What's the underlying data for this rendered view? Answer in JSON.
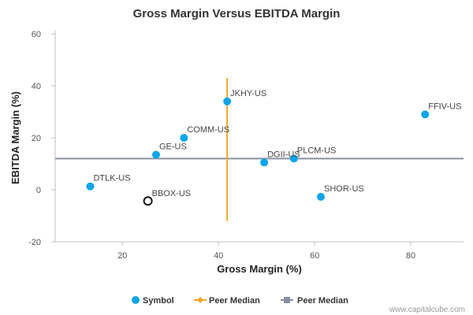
{
  "chart_data": {
    "type": "scatter",
    "title": "Gross Margin Versus EBITDA Margin",
    "xlabel": "Gross Margin (%)",
    "ylabel": "EBITDA Margin (%)",
    "xlim": [
      6,
      91
    ],
    "ylim": [
      -20,
      60
    ],
    "xticks": [
      20,
      40,
      60,
      80
    ],
    "yticks": [
      60,
      40,
      20,
      0,
      -20
    ],
    "series": [
      {
        "name": "Symbol",
        "color": "#0ea5e9",
        "points": [
          {
            "label": "JKHY-US",
            "x": 41.8,
            "y": 34.0
          },
          {
            "label": "FFIV-US",
            "x": 83.0,
            "y": 29.0
          },
          {
            "label": "COMM-US",
            "x": 32.8,
            "y": 20.0
          },
          {
            "label": "GE-US",
            "x": 27.0,
            "y": 13.5
          },
          {
            "label": "PLCM-US",
            "x": 55.7,
            "y": 12.0
          },
          {
            "label": "DGII-US",
            "x": 49.5,
            "y": 10.5
          },
          {
            "label": "DTLK-US",
            "x": 13.3,
            "y": 1.3
          },
          {
            "label": "SHOR-US",
            "x": 61.3,
            "y": -2.7
          }
        ]
      }
    ],
    "highlight_point": {
      "label": "BBOX-US",
      "x": 25.3,
      "y": -4.3,
      "color": "#111111"
    },
    "x_median": {
      "name": "Peer Median",
      "value": 41.8,
      "color": "#f5a623",
      "y_range": [
        -12,
        43
      ]
    },
    "y_median": {
      "name": "Peer Median",
      "value": 12.0,
      "color": "#8a8fa3"
    },
    "legend": {
      "position": "bottom-center",
      "items": [
        {
          "label": "Symbol",
          "color": "#0ea5e9",
          "marker": "circle"
        },
        {
          "label": "Peer Median",
          "color": "#f5a623",
          "marker": "diamond-line"
        },
        {
          "label": "Peer Median",
          "color": "#8a8fa3",
          "marker": "square-line"
        }
      ]
    },
    "credit": "www.capitalcube.com",
    "grid": false
  }
}
